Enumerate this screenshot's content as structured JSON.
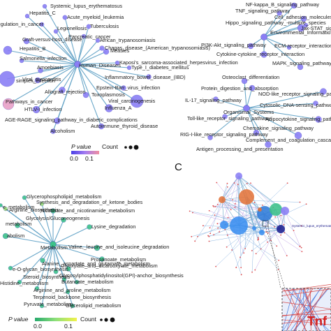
{
  "panel_c_letter": "C",
  "legend_a": {
    "pvalue": "P value",
    "count": "Count",
    "min": "0.0",
    "max": "0.1",
    "colors": [
      "#4a3fe6",
      "#a47cf0",
      "#f08fa0"
    ]
  },
  "legend_b": {
    "pvalue": "P value",
    "count": "Count",
    "min": "0.0",
    "max": "0.1",
    "colors": [
      "#26a96c",
      "#8fe07a",
      "#f2f24a"
    ]
  },
  "node_colors": {
    "purple": "#8a7ef5",
    "pink": "#e8a0c6",
    "green": "#3cc28a",
    "lightgreen": "#9ee27e",
    "blue": "#2f6de3"
  },
  "clusters": [
    {
      "id": "human",
      "hub": "Human_Diseases",
      "hub_color": "#8a7ef5",
      "nodes": [
        {
          "label": "Systemic_lupus_erythematosus",
          "color": "#8a7ef5"
        },
        {
          "label": "Hepatitis_C",
          "color": "#8a7ef5"
        },
        {
          "label": "Acute_myeloid_leukemia",
          "color": "#8a7ef5"
        },
        {
          "label": "Transcriptional_misregulation_in_cancer",
          "color": "#8a7ef5"
        },
        {
          "label": "Legionellosis",
          "color": "#8a7ef5"
        },
        {
          "label": "Tuberculosis",
          "color": "#8a7ef5"
        },
        {
          "label": "Pancreatic_cancer",
          "color": "#8a7ef5"
        },
        {
          "label": "African_trypanosomiasis",
          "color": "#8a7ef5"
        },
        {
          "label": "Graft-versus-host_disease",
          "color": "#8a7ef5"
        },
        {
          "label": "Chagas_disease_(American_trypanosomiasis)",
          "color": "#8a7ef5"
        },
        {
          "label": "Hepatitis_B",
          "color": "#8a7ef5"
        },
        {
          "label": "Measles",
          "color": "#8a7ef5"
        },
        {
          "label": "Kaposi's_sarcoma-associated_herpesvirus_infection",
          "color": "#8a7ef5"
        },
        {
          "label": "Salmonella_infection",
          "color": "#8a7ef5"
        },
        {
          "label": "Amoebiasis",
          "color": "#8a7ef5"
        },
        {
          "label": "Type_I_diabetes_mellitus",
          "color": "#8a7ef5"
        },
        {
          "label": "Inflammatory_bowel_disease_(IBD)",
          "color": "#8a7ef5"
        },
        {
          "label": "simplex_infection",
          "color": "#8a7ef5"
        },
        {
          "label": "Viral_myocarditis",
          "color": "#8a7ef5"
        },
        {
          "label": "Epstein-Barr_virus_infection",
          "color": "#8a7ef5"
        },
        {
          "label": "Allograft_rejection",
          "color": "#8a7ef5"
        },
        {
          "label": "Pathways_in_cancer",
          "color": "#e8a0c6"
        },
        {
          "label": "Viral_carcinogenesis",
          "color": "#8a7ef5"
        },
        {
          "label": "Toxoplasmosis",
          "color": "#8a7ef5"
        },
        {
          "label": "Influenza_A",
          "color": "#8a7ef5"
        },
        {
          "label": "HTLV-I_infection",
          "color": "#8a7ef5"
        },
        {
          "label": "AGE-RAGE_signaling_pathway_in_diabetic_complications",
          "color": "#8a7ef5"
        },
        {
          "label": "Autoimmune_thyroid_disease",
          "color": "#8a7ef5"
        },
        {
          "label": "Alcoholism",
          "color": "#8a7ef5"
        }
      ]
    },
    {
      "id": "envinfo",
      "hub": "Environmental_Information_Processing",
      "hub_color": "#8a7ef5",
      "nodes": [
        {
          "label": "NF-kappa_B_signaling_pathway",
          "color": "#8a7ef5"
        },
        {
          "label": "TNF_signaling_pathway",
          "color": "#8a7ef5"
        },
        {
          "label": "Cell_adhesion_molecules_(CAMs)",
          "color": "#8a7ef5"
        },
        {
          "label": "Hippo_signaling_pathway_-multiple_species",
          "color": "#8a7ef5"
        },
        {
          "label": "Jak-STAT_signaling_pathway",
          "color": "#8a7ef5"
        },
        {
          "label": "PI3K-Akt_signaling_pathway",
          "color": "#8a7ef5"
        },
        {
          "label": "ECM-receptor_interaction",
          "color": "#8a7ef5"
        },
        {
          "label": "Cytokine-cytokine_receptor_interaction",
          "color": "#8a7ef5"
        },
        {
          "label": "MAPK_signaling_pathway",
          "color": "#8a7ef5"
        }
      ]
    },
    {
      "id": "organismal",
      "hub": "Organismal_Systems",
      "hub_color": "#8a7ef5",
      "nodes": [
        {
          "label": "Osteoclast_differentiation",
          "color": "#8a7ef5"
        },
        {
          "label": "Protein_digestion_and_absorption",
          "color": "#8a7ef5"
        },
        {
          "label": "NOD-like_receptor_signaling_pathway",
          "color": "#8a7ef5"
        },
        {
          "label": "IL-17_signaling_pathway",
          "color": "#8a7ef5"
        },
        {
          "label": "Cytosolic_DNA-sensing_pathway",
          "color": "#8a7ef5"
        },
        {
          "label": "Toll-like_receptor_signaling_pathway",
          "color": "#8a7ef5"
        },
        {
          "label": "Adipocytokine_signaling_pathway",
          "color": "#8a7ef5"
        },
        {
          "label": "Chemokine_signaling_pathway",
          "color": "#8a7ef5"
        },
        {
          "label": "RIG-I-like_receptor_signaling_pathway",
          "color": "#8a7ef5"
        },
        {
          "label": "Complement_and_coagulation_cascades",
          "color": "#8a7ef5"
        },
        {
          "label": "Antigen_processing_and_presentation",
          "color": "#8a7ef5"
        }
      ]
    },
    {
      "id": "metabolism",
      "hub": "Metabolism",
      "hub_color": "#3cc28a",
      "nodes": [
        {
          "label": "Glycerophospholipid_metabolism",
          "color": "#3cc28a"
        },
        {
          "label": "Synthesis_and_degradation_of_ketone_bodies",
          "color": "#9ee27e"
        },
        {
          "label": "e_metabolism",
          "color": "#3cc28a"
        },
        {
          "label": "Nicotinate_and_nicotinamide_metabolism",
          "color": "#3cc28a"
        },
        {
          "label": "Glycolysis/Gluconeogenesis",
          "color": "#3cc28a"
        },
        {
          "label": "Lysine_degradation",
          "color": "#3cc28a"
        },
        {
          "label": "metabolism",
          "color": "#3cc28a"
        },
        {
          "label": "Valine,_leucine_and_isoleucine_degradation",
          "color": "#3cc28a"
        },
        {
          "label": "abolism",
          "color": "#3cc28a"
        },
        {
          "label": "Propanoate_metabolism",
          "color": "#3cc28a"
        },
        {
          "label": "Glyoxylate_and_dicarboxylate_metabolism",
          "color": "#3cc28a"
        },
        {
          "label": "e-O-glycan_biosynthesis",
          "color": "#3cc28a"
        },
        {
          "label": "Glycosylphosphatidylinositol(GPI)-anchor_biosynthesis",
          "color": "#3cc28a"
        },
        {
          "label": "Alanine,_aspartate_and_glutamate_metabolism",
          "color": "#3cc28a"
        },
        {
          "label": "Steroid_biosynthesis",
          "color": "#3cc28a"
        },
        {
          "label": "Butanoate_metabolism",
          "color": "#3cc28a"
        },
        {
          "label": "Histidine_metabolism",
          "color": "#3cc28a"
        },
        {
          "label": "Arginine_and_proline_metabolism",
          "color": "#3cc28a"
        },
        {
          "label": "Glycerolipid_metabolism",
          "color": "#3cc28a"
        },
        {
          "label": "Terpenoid_backbone_biosynthesis",
          "color": "#3cc28a"
        },
        {
          "label": "Pyruvate_metabolism",
          "color": "#3cc28a"
        },
        {
          "label": "Arginine_biosynthesis",
          "color": "#9ee27e"
        }
      ]
    }
  ],
  "panel_c": {
    "labels": [
      "Systemic_lupus_erythematosus",
      "Tnf"
    ]
  }
}
